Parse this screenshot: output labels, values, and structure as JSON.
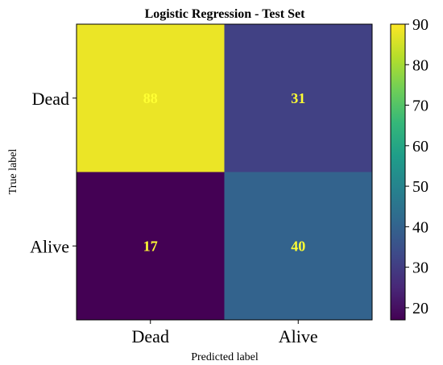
{
  "chart_data": {
    "type": "heatmap",
    "title": "Logistic Regression - Test Set",
    "xlabel": "Predicted label",
    "ylabel": "True label",
    "x_categories": [
      "Dead",
      "Alive"
    ],
    "y_categories": [
      "Dead",
      "Alive"
    ],
    "matrix": [
      [
        88,
        31
      ],
      [
        17,
        40
      ]
    ],
    "colormap": "viridis",
    "colorbar": {
      "range": [
        17,
        90
      ],
      "ticks": [
        20,
        30,
        40,
        50,
        60,
        70,
        80,
        90
      ]
    },
    "annotation_color": "#ffff33",
    "grid": false
  }
}
